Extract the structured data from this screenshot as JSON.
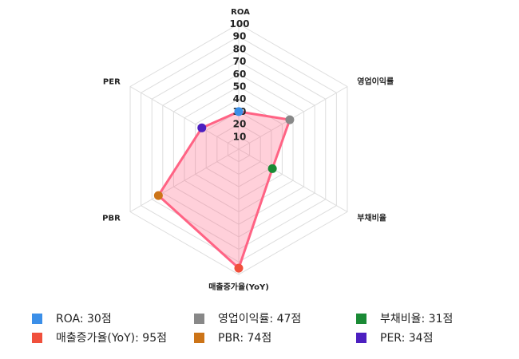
{
  "chart_data": {
    "type": "radar",
    "axes": [
      "ROA",
      "영업이익률",
      "부채비율",
      "매출증가율(YoY)",
      "PBR",
      "PER"
    ],
    "values": [
      30,
      47,
      31,
      95,
      74,
      34
    ],
    "rlim": [
      0,
      100
    ],
    "ticks": [
      "10",
      "20",
      "30",
      "40",
      "50",
      "60",
      "70",
      "80",
      "90",
      "100"
    ],
    "point_colors": [
      "#3b8fe8",
      "#888888",
      "#1a8a35",
      "#f0503c",
      "#cc7418",
      "#4c1fc0"
    ],
    "line_color": "#ff6384",
    "fill_color": "rgba(255,99,132,0.3)",
    "grid": true,
    "legend_position": "bottom",
    "legend": [
      "ROA: 30점",
      "영업이익률: 47점",
      "부채비율: 31점",
      "매출증가율(YoY): 95점",
      "PBR: 74점",
      "PER: 34점"
    ]
  }
}
